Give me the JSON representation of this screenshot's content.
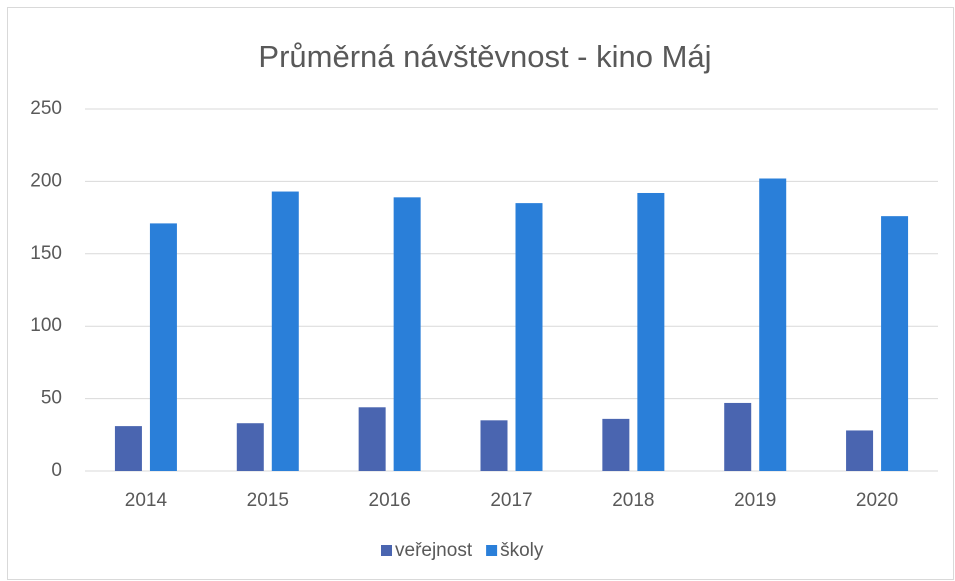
{
  "chart_data": {
    "type": "bar",
    "title": "Průměrná návštěvnost - kino Máj",
    "categories": [
      "2014",
      "2015",
      "2016",
      "2017",
      "2018",
      "2019",
      "2020"
    ],
    "series": [
      {
        "name": "veřejnost",
        "color": "#4a65b0",
        "values": [
          31,
          33,
          44,
          35,
          36,
          47,
          28
        ]
      },
      {
        "name": "školy",
        "color": "#2a7fd9",
        "values": [
          171,
          193,
          189,
          185,
          192,
          202,
          176
        ]
      }
    ],
    "ylim": [
      0,
      250
    ],
    "yticks": [
      0,
      50,
      100,
      150,
      200,
      250
    ],
    "grid": true,
    "legend": "bottom"
  }
}
